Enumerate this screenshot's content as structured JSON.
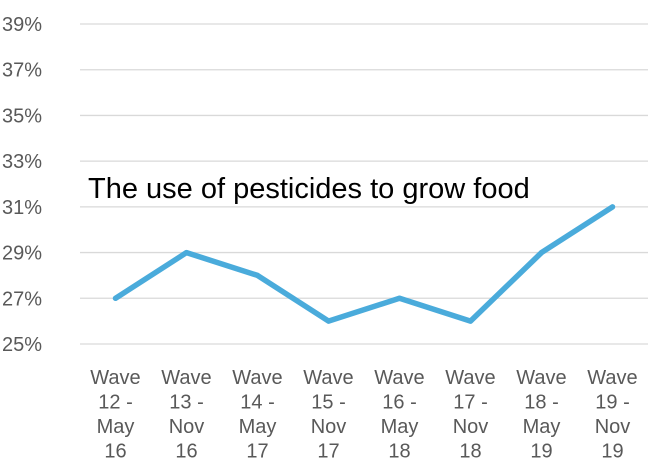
{
  "chart_data": {
    "type": "line",
    "title": "",
    "xlabel": "",
    "ylabel": "",
    "categories": [
      [
        "Wave",
        "12 -",
        "May",
        "16"
      ],
      [
        "Wave",
        "13 -",
        "Nov",
        "16"
      ],
      [
        "Wave",
        "14 -",
        "May",
        "17"
      ],
      [
        "Wave",
        "15 -",
        "Nov",
        "17"
      ],
      [
        "Wave",
        "16 -",
        "May",
        "18"
      ],
      [
        "Wave",
        "17 -",
        "Nov",
        "18"
      ],
      [
        "Wave",
        "18 -",
        "May",
        "19"
      ],
      [
        "Wave",
        "19 -",
        "Nov",
        "19"
      ]
    ],
    "series": [
      {
        "values": [
          27,
          29,
          28,
          26,
          27,
          26,
          29,
          31
        ],
        "color": "#4aabdb"
      }
    ],
    "ylim": [
      25,
      39
    ],
    "yticks": [
      25,
      27,
      29,
      31,
      33,
      35,
      37,
      39
    ],
    "ytick_labels": [
      "25%",
      "27%",
      "29%",
      "31%",
      "33%",
      "35%",
      "37%",
      "39%"
    ],
    "grid": true,
    "legend": "none",
    "annotation": "The use of pesticides to grow food",
    "colors": {
      "gridline": "#d9d9d9",
      "tick_text": "#595959",
      "line": "#4aabdb"
    }
  }
}
